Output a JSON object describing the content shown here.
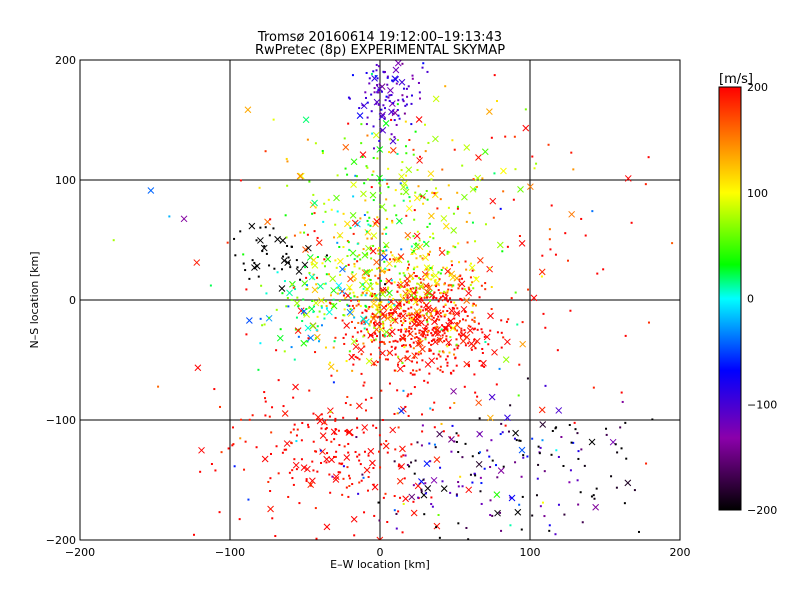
{
  "chart_data": {
    "type": "scatter",
    "title": "Tromsø 20160614 19:12:00–19:13:43",
    "subtitle": "RwPretec (8p) EXPERIMENTAL SKYMAP",
    "xlabel": "E–W location [km]",
    "ylabel": "N–S location [km]",
    "xlim": [
      -200,
      200
    ],
    "ylim": [
      -200,
      200
    ],
    "x_ticks": [
      -200,
      -100,
      0,
      100,
      200
    ],
    "y_ticks": [
      -200,
      -100,
      0,
      100,
      200
    ],
    "grid": true,
    "colorbar": {
      "label": "[m/s]",
      "range": [
        -200,
        200
      ],
      "ticks": [
        200,
        100,
        0,
        -100,
        -200
      ],
      "colors": [
        "#000000",
        "#8b00aa",
        "#0000ff",
        "#00ffff",
        "#00ff00",
        "#ffff00",
        "#ff0000"
      ]
    },
    "clusters": [
      {
        "cx": 25,
        "cy": -20,
        "sx": 28,
        "sy": 22,
        "v": 200,
        "vs": 15,
        "n": 520
      },
      {
        "cx": 10,
        "cy": 10,
        "sx": 28,
        "sy": 28,
        "v": 110,
        "vs": 35,
        "n": 320
      },
      {
        "cx": 0,
        "cy": 55,
        "sx": 30,
        "sy": 40,
        "v": 60,
        "vs": 40,
        "n": 180
      },
      {
        "cx": 5,
        "cy": 168,
        "sx": 10,
        "sy": 18,
        "v": -100,
        "vs": 20,
        "n": 110
      },
      {
        "cx": -30,
        "cy": -130,
        "sx": 35,
        "sy": 30,
        "v": 200,
        "vs": 10,
        "n": 230
      },
      {
        "cx": 60,
        "cy": -145,
        "sx": 40,
        "sy": 28,
        "v": -140,
        "vs": 60,
        "n": 160
      },
      {
        "cx": -70,
        "cy": 35,
        "sx": 15,
        "sy": 15,
        "v": -200,
        "vs": 0,
        "n": 45
      },
      {
        "cx": -45,
        "cy": -10,
        "sx": 20,
        "sy": 18,
        "v": 30,
        "vs": 40,
        "n": 90
      },
      {
        "cx": 40,
        "cy": 40,
        "sx": 80,
        "sy": 80,
        "v": 200,
        "vs": 30,
        "n": 120
      },
      {
        "cx": 0,
        "cy": 0,
        "sx": 110,
        "sy": 110,
        "v": 100,
        "vs": 120,
        "n": 90
      },
      {
        "cx": 20,
        "cy": 110,
        "sx": 45,
        "sy": 25,
        "v": 90,
        "vs": 50,
        "n": 70
      },
      {
        "cx": 130,
        "cy": -140,
        "sx": 35,
        "sy": 30,
        "v": -200,
        "vs": 20,
        "n": 40
      }
    ]
  }
}
